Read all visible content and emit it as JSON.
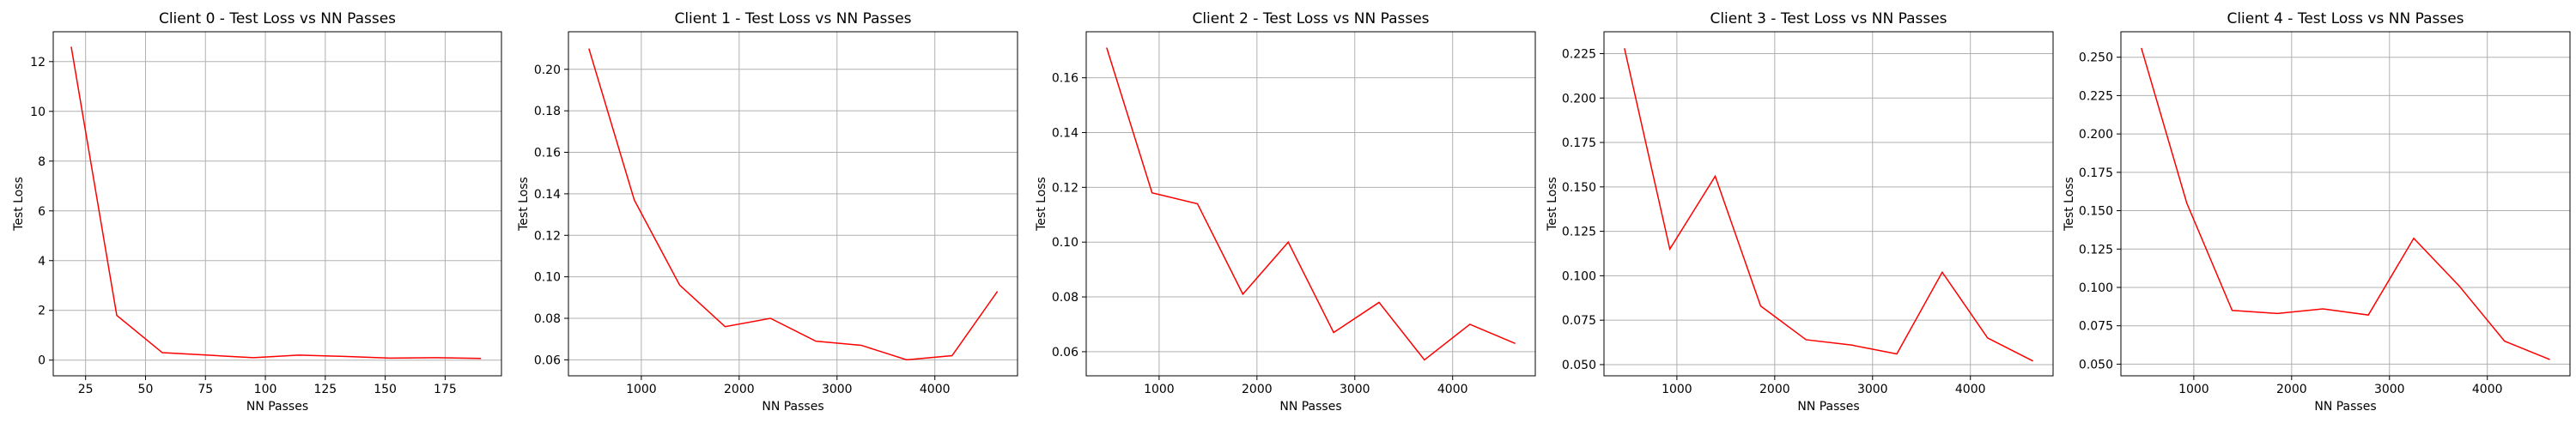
{
  "colors": {
    "line": "#ff0000",
    "grid": "#b0b0b0",
    "axes": "#000000",
    "background": "#ffffff"
  },
  "chart_data": [
    {
      "type": "line",
      "title": "Client 0 - Test Loss vs NN Passes",
      "xlabel": "NN Passes",
      "ylabel": "Test Loss",
      "xlim": [
        11.5,
        198.5
      ],
      "ylim": [
        -0.63,
        13.2
      ],
      "xticks": [
        25,
        50,
        75,
        100,
        125,
        150,
        175
      ],
      "yticks": [
        0,
        2,
        4,
        6,
        8,
        10,
        12
      ],
      "grid": true,
      "series": [
        {
          "x": [
            19,
            38,
            57,
            76,
            95,
            114,
            133,
            152,
            171,
            190
          ],
          "y": [
            12.6,
            1.8,
            0.3,
            0.2,
            0.1,
            0.2,
            0.15,
            0.08,
            0.1,
            0.07
          ]
        }
      ]
    },
    {
      "type": "line",
      "title": "Client 1 - Test Loss vs NN Passes",
      "xlabel": "NN Passes",
      "ylabel": "Test Loss",
      "xlim": [
        255,
        4845
      ],
      "ylim": [
        0.0523,
        0.2181
      ],
      "xticks": [
        1000,
        2000,
        3000,
        4000
      ],
      "yticks": [
        0.06,
        0.08,
        0.1,
        0.12,
        0.14,
        0.16,
        0.18,
        0.2
      ],
      "grid": true,
      "series": [
        {
          "x": [
            464,
            928,
            1392,
            1856,
            2320,
            2784,
            3248,
            3712,
            4176,
            4640
          ],
          "y": [
            0.21,
            0.137,
            0.096,
            0.076,
            0.08,
            0.069,
            0.067,
            0.06,
            0.062,
            0.093
          ]
        }
      ]
    },
    {
      "type": "line",
      "title": "Client 2 - Test Loss vs NN Passes",
      "xlabel": "NN Passes",
      "ylabel": "Test Loss",
      "xlim": [
        255,
        4845
      ],
      "ylim": [
        0.0512,
        0.1768
      ],
      "xticks": [
        1000,
        2000,
        3000,
        4000
      ],
      "yticks": [
        0.06,
        0.08,
        0.1,
        0.12,
        0.14,
        0.16
      ],
      "grid": true,
      "series": [
        {
          "x": [
            464,
            928,
            1392,
            1856,
            2320,
            2784,
            3248,
            3712,
            4176,
            4640
          ],
          "y": [
            0.171,
            0.118,
            0.114,
            0.081,
            0.1,
            0.067,
            0.078,
            0.057,
            0.07,
            0.063
          ]
        }
      ]
    },
    {
      "type": "line",
      "title": "Client 3 - Test Loss vs NN Passes",
      "xlabel": "NN Passes",
      "ylabel": "Test Loss",
      "xlim": [
        255,
        4845
      ],
      "ylim": [
        0.0437,
        0.2373
      ],
      "xticks": [
        1000,
        2000,
        3000,
        4000
      ],
      "yticks": [
        0.05,
        0.075,
        0.1,
        0.125,
        0.15,
        0.175,
        0.2,
        0.225
      ],
      "grid": true,
      "series": [
        {
          "x": [
            464,
            928,
            1392,
            1856,
            2320,
            2784,
            3248,
            3712,
            4176,
            4640
          ],
          "y": [
            0.228,
            0.115,
            0.156,
            0.083,
            0.064,
            0.061,
            0.056,
            0.102,
            0.065,
            0.052
          ]
        }
      ]
    },
    {
      "type": "line",
      "title": "Client 4 - Test Loss vs NN Passes",
      "xlabel": "NN Passes",
      "ylabel": "Test Loss",
      "xlim": [
        255,
        4845
      ],
      "ylim": [
        0.0424,
        0.2666
      ],
      "xticks": [
        1000,
        2000,
        3000,
        4000
      ],
      "yticks": [
        0.05,
        0.075,
        0.1,
        0.125,
        0.15,
        0.175,
        0.2,
        0.225,
        0.25
      ],
      "grid": true,
      "series": [
        {
          "x": [
            464,
            928,
            1392,
            1856,
            2320,
            2784,
            3248,
            3712,
            4176,
            4640
          ],
          "y": [
            0.256,
            0.155,
            0.085,
            0.083,
            0.086,
            0.082,
            0.132,
            0.101,
            0.065,
            0.053
          ]
        }
      ]
    }
  ]
}
